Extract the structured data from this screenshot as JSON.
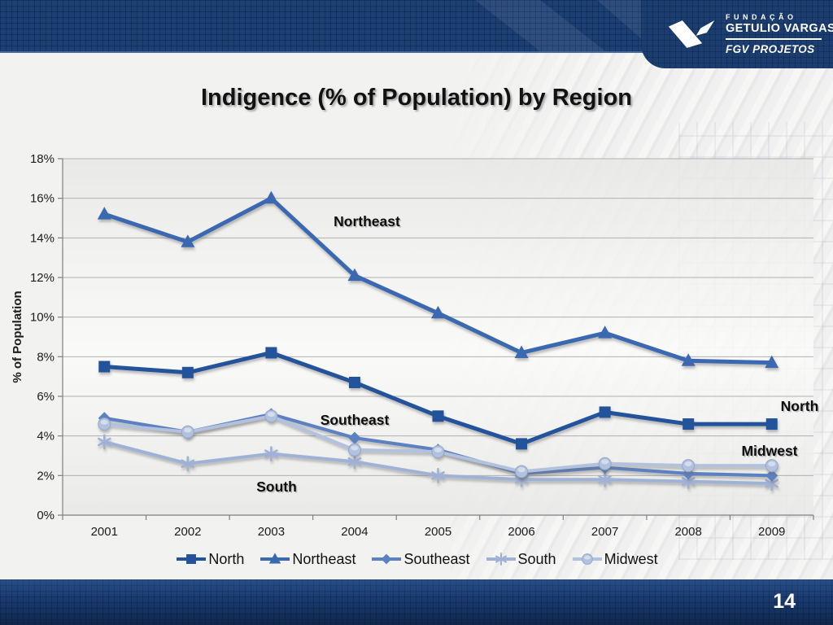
{
  "slide": {
    "title": "Indigence (% of Population) by Region",
    "page_number": "14"
  },
  "logo": {
    "line1": "FUNDAÇÃO",
    "line2": "GETULIO VARGAS",
    "line3": "FGV PROJETOS"
  },
  "chart_data": {
    "type": "line",
    "title": "Indigence (% of Population) by Region",
    "xlabel": "",
    "ylabel": "% of Population",
    "ylim": [
      0,
      18
    ],
    "ytick_step": 2,
    "ytick_suffix": "%",
    "grid": true,
    "legend_position": "bottom",
    "categories": [
      "2001",
      "2002",
      "2003",
      "2004",
      "2005",
      "2006",
      "2007",
      "2008",
      "2009"
    ],
    "series": [
      {
        "name": "North",
        "marker": "square",
        "color": "#24539b",
        "values": [
          7.5,
          7.2,
          8.2,
          6.7,
          5.0,
          3.6,
          5.2,
          4.6,
          4.6
        ]
      },
      {
        "name": "Northeast",
        "marker": "triangle",
        "color": "#3a69b1",
        "values": [
          15.2,
          13.8,
          16.0,
          12.1,
          10.2,
          8.2,
          9.2,
          7.8,
          7.7
        ]
      },
      {
        "name": "Southeast",
        "marker": "diamond",
        "color": "#5b81c2",
        "values": [
          4.9,
          4.2,
          5.1,
          3.9,
          3.3,
          2.1,
          2.4,
          2.1,
          2.0
        ]
      },
      {
        "name": "South",
        "marker": "asterisk",
        "color": "#9fb2d6",
        "values": [
          3.7,
          2.6,
          3.1,
          2.7,
          2.0,
          1.8,
          1.8,
          1.7,
          1.6
        ]
      },
      {
        "name": "Midwest",
        "marker": "circle",
        "color": "#b2c1de",
        "values": [
          4.6,
          4.2,
          5.0,
          3.3,
          3.2,
          2.2,
          2.6,
          2.5,
          2.5
        ]
      }
    ],
    "annotations": [
      {
        "text": "Northeast",
        "x": 451,
        "y": 272
      },
      {
        "text": "Southeast",
        "x": 436,
        "y": 516
      },
      {
        "text": "South",
        "x": 340,
        "y": 598
      },
      {
        "text": "North",
        "x": 983,
        "y": 499
      },
      {
        "text": "Midwest",
        "x": 946,
        "y": 554
      }
    ]
  }
}
